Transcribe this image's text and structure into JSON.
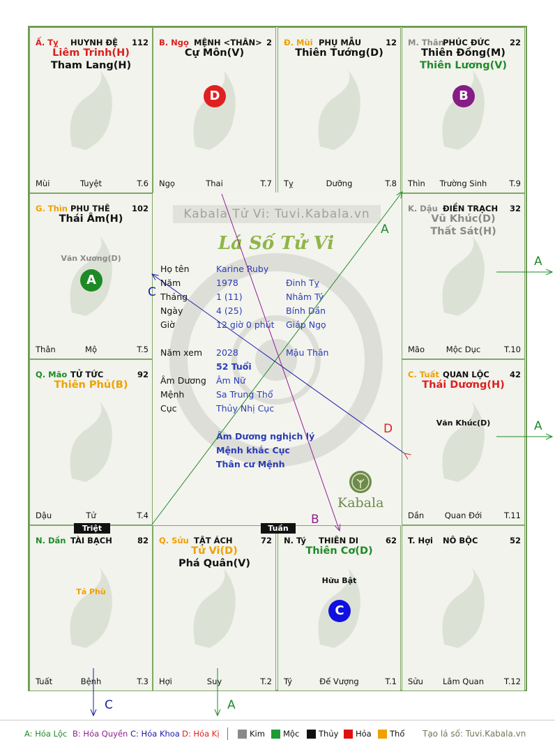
{
  "watermark": "Kabala Tử Vi: Tuvi.Kabala.vn",
  "center_title": "Lá Số Tử Vi",
  "kabala_logo_text": "Kabala",
  "colors": {
    "red": "#dd1f1f",
    "black": "#111111",
    "green": "#1f8a2a",
    "orange": "#f0a000",
    "gray": "#8a8a8a",
    "blue": "#2a3db5",
    "purple": "#8e1f8e"
  },
  "cells": [
    {
      "id": "ty",
      "can": "Ấ. Tỵ",
      "can_color": "#dd1f1f",
      "house": "HUYNH ĐỆ",
      "num": "112",
      "stars": [
        {
          "text": "Liêm Trinh(H)",
          "color": "#dd1f1f"
        },
        {
          "text": "Tham Lang(H)",
          "color": "#111111"
        }
      ],
      "minor": [],
      "bottom_left": "Mùi",
      "bottom_mid": "Tuyệt",
      "bottom_right": "T.6"
    },
    {
      "id": "ngo",
      "can": "B. Ngọ",
      "can_color": "#dd1f1f",
      "house": "MỆNH <THÂN>",
      "num": "2",
      "stars": [
        {
          "text": "Cự Môn(V)",
          "color": "#111111"
        }
      ],
      "minor": [],
      "badge": {
        "text": "D",
        "color": "#e02020"
      },
      "bottom_left": "Ngọ",
      "bottom_mid": "Thai",
      "bottom_right": "T.7"
    },
    {
      "id": "mui",
      "can": "Đ. Mùi",
      "can_color": "#f0a000",
      "house": "PHỤ MẪU",
      "num": "12",
      "stars": [
        {
          "text": "Thiên Tướng(D)",
          "color": "#111111"
        }
      ],
      "minor": [],
      "bottom_left": "Tỵ",
      "bottom_mid": "Dưỡng",
      "bottom_right": "T.8"
    },
    {
      "id": "than",
      "can": "M. Thân",
      "can_color": "#8a8a8a",
      "house": "PHÚC ĐỨC",
      "num": "22",
      "stars": [
        {
          "text": "Thiên Đồng(M)",
          "color": "#111111"
        },
        {
          "text": "Thiên Lương(V)",
          "color": "#1f8a2a"
        }
      ],
      "minor": [],
      "badge": {
        "text": "B",
        "color": "#861c86"
      },
      "bottom_left": "Thìn",
      "bottom_mid": "Trường Sinh",
      "bottom_right": "T.9"
    },
    {
      "id": "thin",
      "can": "G. Thìn",
      "can_color": "#f0a000",
      "house": "PHU THÊ",
      "num": "102",
      "stars": [
        {
          "text": "Thái Âm(H)",
          "color": "#111111"
        }
      ],
      "minor": [
        {
          "text": "Văn Xương(D)",
          "color": "#8a8a8a"
        }
      ],
      "badge": {
        "text": "A",
        "color": "#1d8a25"
      },
      "bottom_left": "Thân",
      "bottom_mid": "Mộ",
      "bottom_right": "T.5"
    },
    {
      "id": "dau",
      "can": "K. Dậu",
      "can_color": "#8a8a8a",
      "house": "ĐIỀN TRẠCH",
      "num": "32",
      "stars": [
        {
          "text": "Vũ Khúc(D)",
          "color": "#8a8a8a"
        },
        {
          "text": "Thất Sát(H)",
          "color": "#8a8a8a"
        }
      ],
      "minor": [],
      "bottom_left": "Mão",
      "bottom_mid": "Mộc Dục",
      "bottom_right": "T.10"
    },
    {
      "id": "mao",
      "can": "Q. Mão",
      "can_color": "#1f8a2a",
      "house": "TỬ TỨC",
      "num": "92",
      "stars": [
        {
          "text": "Thiên Phủ(B)",
          "color": "#f0a000"
        }
      ],
      "minor": [],
      "bottom_left": "Dậu",
      "bottom_mid": "Tử",
      "bottom_right": "T.4"
    },
    {
      "id": "tuat",
      "can": "C. Tuất",
      "can_color": "#f0a000",
      "house": "QUAN LỘC",
      "num": "42",
      "stars": [
        {
          "text": "Thái Dương(H)",
          "color": "#dd1f1f"
        }
      ],
      "minor": [
        {
          "text": "Văn Khúc(D)",
          "color": "#111111"
        }
      ],
      "bottom_left": "Dần",
      "bottom_mid": "Quan Đới",
      "bottom_right": "T.11"
    },
    {
      "id": "dan",
      "can": "N. Dần",
      "can_color": "#1f8a2a",
      "house": "TÀI BẠCH",
      "num": "82",
      "stars": [],
      "minor": [
        {
          "text": "Tả Phù",
          "color": "#f0a000"
        }
      ],
      "bottom_left": "Tuất",
      "bottom_mid": "Bệnh",
      "bottom_right": "T.3"
    },
    {
      "id": "suu",
      "can": "Q. Sửu",
      "can_color": "#f0a000",
      "house": "TẬT ÁCH",
      "num": "72",
      "stars": [
        {
          "text": "Tử Vi(D)",
          "color": "#f0a000"
        },
        {
          "text": "Phá Quân(V)",
          "color": "#111111"
        }
      ],
      "minor": [],
      "bottom_left": "Hợi",
      "bottom_mid": "Suy",
      "bottom_right": "T.2"
    },
    {
      "id": "ty2",
      "can": "N. Tý",
      "can_color": "#111111",
      "house": "THIÊN DI",
      "num": "62",
      "stars": [
        {
          "text": "Thiên Cơ(D)",
          "color": "#1f8a2a"
        }
      ],
      "minor": [
        {
          "text": "Hữu Bật",
          "color": "#111111"
        }
      ],
      "badge": {
        "text": "C",
        "color": "#1010e0"
      },
      "bottom_left": "Tý",
      "bottom_mid": "Đế Vượng",
      "bottom_right": "T.1"
    },
    {
      "id": "hoi",
      "can": "T. Hợi",
      "can_color": "#111111",
      "house": "NÔ BỘC",
      "num": "52",
      "stars": [],
      "minor": [],
      "bottom_left": "Sửu",
      "bottom_mid": "Lâm Quan",
      "bottom_right": "T.12"
    }
  ],
  "info": {
    "rows": [
      {
        "label": "Họ tên",
        "v1": "Karine Ruby",
        "v2": ""
      },
      {
        "label": "Năm",
        "v1": "1978",
        "v2": "Đinh Tỵ"
      },
      {
        "label": "Tháng",
        "v1": "1  (11)",
        "v2": "Nhâm Tý"
      },
      {
        "label": "Ngày",
        "v1": "4  (25)",
        "v2": "Bính Dần"
      },
      {
        "label": "Giờ",
        "v1": "12 giờ 0 phút",
        "v2": "Giáp Ngọ"
      }
    ],
    "nam_xem_label": "Năm xem",
    "nam_xem": "2028",
    "nam_xem_can": "Mậu Thân",
    "tuoi": "52 Tuổi",
    "am_duong_label": "Âm Dương",
    "am_duong": "Âm Nữ",
    "menh_label": "Mệnh",
    "menh": "Sa Trung Thổ",
    "cuc_label": "Cục",
    "cuc": "Thủy Nhị Cục",
    "notes": [
      "Âm Dương nghịch lý",
      "Mệnh khắc Cục",
      "Thân cư Mệnh"
    ]
  },
  "tags": {
    "triet": "Triệt",
    "tuan": "Tuần"
  },
  "arrow_labels": {
    "a1": "A",
    "a2": "A",
    "a3": "A",
    "a4": "A",
    "b": "B",
    "c1": "C",
    "c2": "C",
    "d": "D"
  },
  "legend": {
    "hoa_loc": "A: Hóa Lộc",
    "hoa_quyen": "B: Hóa Quyền",
    "hoa_khoa": "C: Hóa Khoa",
    "hoa_ki": "D: Hóa Kị",
    "kim": "Kim",
    "moc": "Mộc",
    "thuy": "Thủy",
    "hoa": "Hỏa",
    "tho": "Thổ",
    "footer": "Tạo lá số: Tuvi.Kabala.vn"
  }
}
